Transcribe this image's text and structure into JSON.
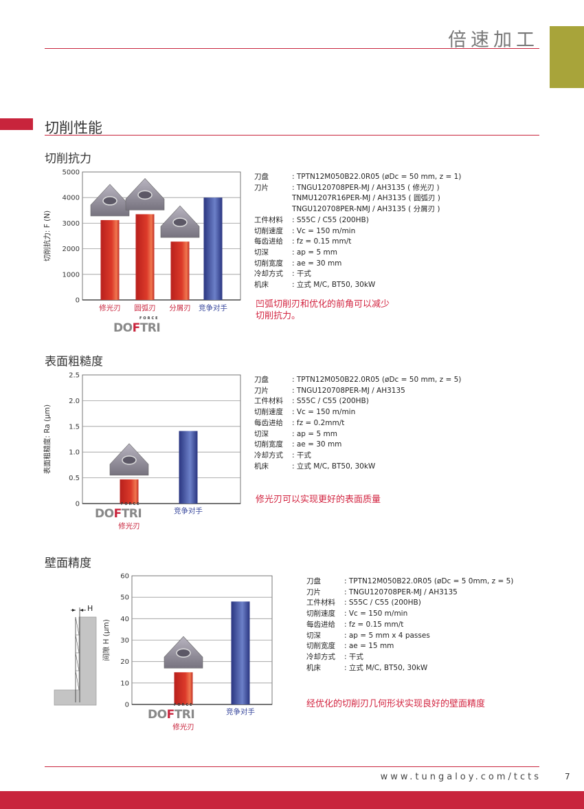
{
  "header": {
    "title": "倍速加工"
  },
  "colors": {
    "accent_red": "#c8243c",
    "olive": "#a8a43a",
    "bar_red": "#dc3a2a",
    "bar_blue": "#3b4a9e",
    "conclusion": "#d2233f"
  },
  "section": {
    "title": "切削性能"
  },
  "brand_logo": {
    "text": "DOFTRI",
    "sub": "FORCE"
  },
  "blocks": [
    {
      "title": "切削抗力",
      "specs": [
        {
          "k": "刀盘",
          "v": ": TPTN12M050B22.0R05 (øDc = 50 mm, z = 1)"
        },
        {
          "k": "刀片",
          "v": ": TNGU120708PER-MJ / AH3135 ( 修光刃 )"
        },
        {
          "k": "",
          "v": "TNMU1207R16PER-MJ / AH3135 ( 圆弧刃 )"
        },
        {
          "k": "",
          "v": "TNGU120708PER-NMJ / AH3135 ( 分屑刃 )"
        },
        {
          "k": "工件材料",
          "v": ": S55C / C55 (200HB)"
        },
        {
          "k": "切削速度",
          "v": ": Vc = 150 m/min"
        },
        {
          "k": "每齿进给",
          "v": ": fz = 0.15 mm/t"
        },
        {
          "k": "切深",
          "v": ": ap = 5 mm"
        },
        {
          "k": "切削宽度",
          "v": ": ae = 30 mm"
        },
        {
          "k": "冷却方式",
          "v": ": 干式"
        },
        {
          "k": "机床",
          "v": ": 立式 M/C, BT50, 30kW"
        }
      ],
      "conclusion": [
        "凹弧切削刃和优化的前角可以减少",
        "切削抗力。"
      ]
    },
    {
      "title": "表面粗糙度",
      "specs": [
        {
          "k": "刀盘",
          "v": ": TPTN12M050B22.0R05 (øDc = 50 mm, z = 5)"
        },
        {
          "k": "刀片",
          "v": ": TNGU120708PER-MJ / AH3135"
        },
        {
          "k": "工件材料",
          "v": ": S55C / C55 (200HB)"
        },
        {
          "k": "切削速度",
          "v": ": Vc = 150 m/min"
        },
        {
          "k": "每齿进给",
          "v": ": fz = 0.2mm/t"
        },
        {
          "k": "切深",
          "v": ": ap = 5 mm"
        },
        {
          "k": "切削宽度",
          "v": ": ae = 30 mm"
        },
        {
          "k": "冷却方式",
          "v": ": 干式"
        },
        {
          "k": "机床",
          "v": ": 立式 M/C, BT50, 30kW"
        }
      ],
      "conclusion": [
        "修光刃可以实现更好的表面质量"
      ]
    },
    {
      "title": "壁面精度",
      "specs": [
        {
          "k": "刀盘",
          "v": ": TPTN12M050B22.0R05 (øDc = 5 0mm, z = 5)"
        },
        {
          "k": "刀片",
          "v": ": TNGU120708PER-MJ / AH3135"
        },
        {
          "k": "工件材料",
          "v": ": S55C / C55 (200HB)"
        },
        {
          "k": "切削速度",
          "v": ": Vc = 150 m/min"
        },
        {
          "k": "每齿进给",
          "v": ": fz = 0.15 mm/t"
        },
        {
          "k": "切深",
          "v": ": ap = 5 mm x 4 passes"
        },
        {
          "k": "切削宽度",
          "v": ": ae = 15 mm"
        },
        {
          "k": "冷却方式",
          "v": ": 干式"
        },
        {
          "k": "机床",
          "v": ": 立式 M/C, BT50, 30kW"
        }
      ],
      "conclusion": [
        "经优化的切削刃几何形状实现良好的壁面精度"
      ],
      "diagram_label": "H"
    }
  ],
  "chart_data": [
    {
      "type": "bar",
      "title": "",
      "ylabel": "切削抗力: F (N)",
      "ylim": [
        0,
        5000
      ],
      "yticks": [
        0,
        1000,
        2000,
        3000,
        4000,
        5000
      ],
      "grid": true,
      "categories": [
        "修光刃",
        "圆弧刃",
        "分屑刃",
        "竞争对手"
      ],
      "values": [
        3120,
        3350,
        2280,
        4000
      ],
      "bar_colors": [
        "red",
        "red",
        "red",
        "blue"
      ]
    },
    {
      "type": "bar",
      "title": "",
      "ylabel": "表面粗糙度: Ra (μm)",
      "ylim": [
        0,
        2.5
      ],
      "yticks": [
        "0",
        "0.5",
        "1.0",
        "1.5",
        "2.0",
        "2.5"
      ],
      "grid": true,
      "categories": [
        "修光刃",
        "竞争对手"
      ],
      "values": [
        0.47,
        1.41
      ],
      "bar_colors": [
        "red",
        "blue"
      ]
    },
    {
      "type": "bar",
      "title": "",
      "ylabel": "间隙 H (μm)",
      "ylim": [
        0,
        60
      ],
      "yticks": [
        0,
        10,
        20,
        30,
        40,
        50,
        60
      ],
      "grid": true,
      "categories": [
        "修光刃",
        "竞争对手"
      ],
      "values": [
        15,
        48
      ],
      "bar_colors": [
        "red",
        "blue"
      ]
    }
  ],
  "footer": {
    "url": "www.tungaloy.com/tcts",
    "page": "7"
  }
}
